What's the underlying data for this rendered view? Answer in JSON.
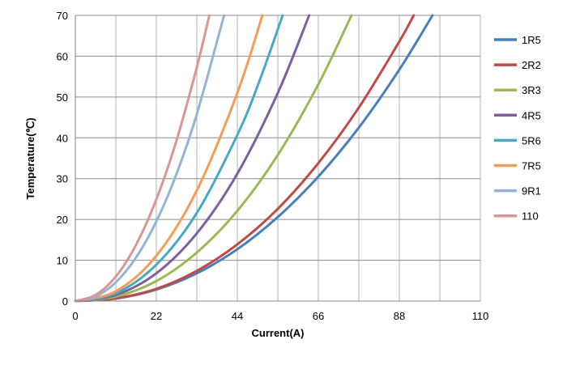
{
  "chart_data": {
    "type": "line",
    "title": "",
    "xlabel": "Current(A)",
    "ylabel": "Temperature(℃)",
    "xlim": [
      0,
      110
    ],
    "ylim": [
      0,
      70
    ],
    "xticks": [
      0,
      22,
      44,
      66,
      88,
      110
    ],
    "yticks": [
      0,
      10,
      20,
      30,
      40,
      50,
      60,
      70
    ],
    "grid": true,
    "legend_position": "right",
    "series": [
      {
        "name": "1R5",
        "color": "#4a7ebb",
        "x": [
          0,
          11,
          22,
          33,
          44,
          55,
          66,
          77,
          88,
          97
        ],
        "y": [
          0,
          0.6,
          2.8,
          6.8,
          12.7,
          20.6,
          30.5,
          42.5,
          56.7,
          70
        ]
      },
      {
        "name": "2R2",
        "color": "#be4b48",
        "x": [
          0,
          11,
          22,
          33,
          44,
          55,
          66,
          77,
          88,
          91.9
        ],
        "y": [
          0,
          0.7,
          3.0,
          7.4,
          13.9,
          22.6,
          33.8,
          47.4,
          63.6,
          70
        ]
      },
      {
        "name": "3R3",
        "color": "#98b954",
        "x": [
          0,
          11,
          22,
          33,
          44,
          55,
          66,
          75
        ],
        "y": [
          0,
          1.1,
          4.9,
          11.9,
          22.1,
          35.8,
          53.1,
          70
        ]
      },
      {
        "name": "4R5",
        "color": "#7d60a0",
        "x": [
          0,
          11,
          22,
          33,
          44,
          55,
          63.5
        ],
        "y": [
          0,
          1.5,
          6.8,
          16.6,
          31.2,
          51.0,
          70
        ]
      },
      {
        "name": "5R6",
        "color": "#46aac5",
        "x": [
          0,
          11,
          22,
          33,
          44,
          50,
          56.3
        ],
        "y": [
          0,
          1.9,
          8.9,
          21.6,
          40.7,
          53.9,
          70
        ]
      },
      {
        "name": "7R5",
        "color": "#f59d56",
        "x": [
          0,
          11,
          22,
          33,
          44,
          50.8
        ],
        "y": [
          0,
          2.4,
          11.1,
          27.1,
          51.0,
          70
        ]
      },
      {
        "name": "9R1",
        "color": "#95b3d7",
        "x": [
          0,
          5.5,
          11,
          16.5,
          22,
          27.5,
          33,
          40.4
        ],
        "y": [
          0,
          1.1,
          4.6,
          10.7,
          19.5,
          31.2,
          45.8,
          70
        ]
      },
      {
        "name": "110",
        "color": "#d99694",
        "x": [
          0,
          5.5,
          11,
          16.5,
          22,
          27.5,
          33,
          36.4
        ],
        "y": [
          0,
          1.5,
          6.0,
          13.8,
          24.9,
          39.4,
          57.3,
          70
        ]
      }
    ]
  }
}
